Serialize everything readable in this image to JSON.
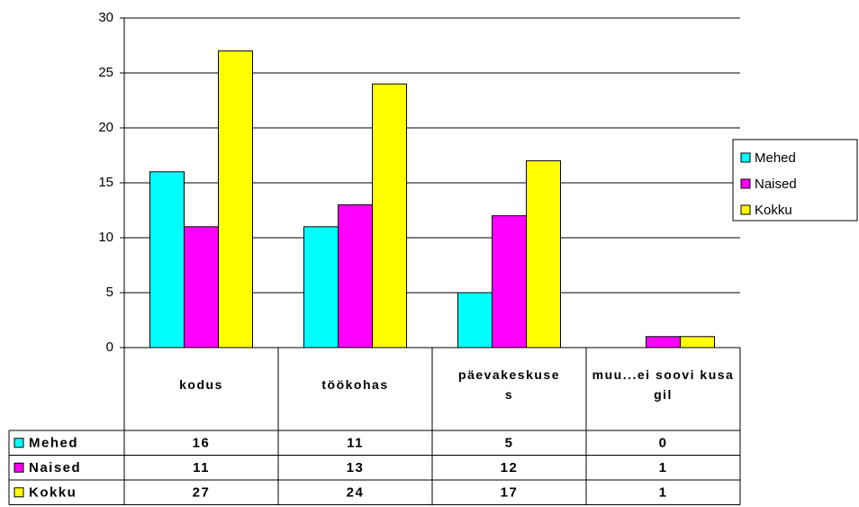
{
  "chart_data": {
    "type": "bar",
    "categories": [
      "kodus",
      "töökohas",
      "päevakeskuses",
      "muu...ei soovi kusagil"
    ],
    "series": [
      {
        "name": "Mehed",
        "color": "#00ffff",
        "values": [
          16,
          11,
          5,
          0
        ]
      },
      {
        "name": "Naised",
        "color": "#ff00ff",
        "values": [
          11,
          13,
          12,
          1
        ]
      },
      {
        "name": "Kokku",
        "color": "#ffff00",
        "values": [
          27,
          24,
          17,
          1
        ]
      }
    ],
    "ylim": [
      0,
      30
    ],
    "yticks": [
      0,
      5,
      10,
      15,
      20,
      25,
      30
    ],
    "grid": true,
    "legend": "right"
  }
}
